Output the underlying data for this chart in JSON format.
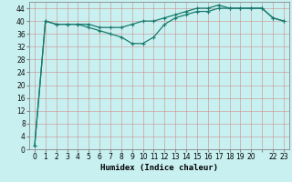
{
  "xlabel": "Humidex (Indice chaleur)",
  "background_color": "#c8f0f0",
  "grid_color": "#b0d8d8",
  "line_color": "#1a7a6e",
  "hours": [
    0,
    1,
    2,
    3,
    4,
    5,
    6,
    7,
    8,
    9,
    10,
    11,
    12,
    13,
    14,
    15,
    16,
    17,
    18,
    19,
    20,
    21,
    22,
    23
  ],
  "series1": [
    1,
    40,
    39,
    39,
    39,
    39,
    38,
    38,
    38,
    39,
    40,
    40,
    41,
    42,
    43,
    44,
    44,
    45,
    44,
    44,
    44,
    44,
    41,
    40
  ],
  "series2": [
    1,
    40,
    39,
    39,
    39,
    38,
    37,
    36,
    35,
    33,
    33,
    35,
    39,
    41,
    42,
    43,
    43,
    44,
    44,
    44,
    44,
    44,
    41,
    40
  ],
  "ylim": [
    0,
    46
  ],
  "yticks": [
    0,
    4,
    8,
    12,
    16,
    20,
    24,
    28,
    32,
    36,
    40,
    44
  ],
  "xtick_labels": [
    "0",
    "1",
    "2",
    "3",
    "4",
    "5",
    "6",
    "7",
    "8",
    "9",
    "10",
    "11",
    "12",
    "13",
    "14",
    "15",
    "16",
    "17",
    "18",
    "19",
    "20",
    "",
    "22",
    "23"
  ],
  "label_fontsize": 6.5,
  "tick_fontsize": 5.5
}
